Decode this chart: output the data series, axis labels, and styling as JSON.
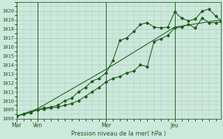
{
  "xlabel": "Pression niveau de la mer( hPa )",
  "bg_color": "#cde8dc",
  "grid_color": "#aaccbb",
  "line_color": "#1a5c1a",
  "ylim": [
    1008,
    1021
  ],
  "yticks": [
    1008,
    1009,
    1010,
    1011,
    1012,
    1013,
    1014,
    1015,
    1016,
    1017,
    1018,
    1019,
    1020
  ],
  "day_labels": [
    "Mar",
    "Ven",
    "Mer",
    "Jeu"
  ],
  "day_positions": [
    0,
    12,
    52,
    92
  ],
  "total_points": 120,
  "line1_x": [
    0,
    4,
    8,
    12,
    16,
    20,
    24,
    28,
    32,
    36,
    40,
    44,
    48,
    52,
    56,
    60,
    64,
    68,
    72,
    76,
    80,
    84,
    88,
    92,
    96,
    100,
    104,
    108,
    112,
    116,
    119
  ],
  "line1_y": [
    1008.3,
    1008.5,
    1008.7,
    1009.0,
    1009.1,
    1009.2,
    1009.3,
    1009.5,
    1009.7,
    1010.0,
    1010.5,
    1011.0,
    1011.5,
    1012.1,
    1012.5,
    1012.7,
    1013.1,
    1013.3,
    1014.0,
    1013.8,
    1016.6,
    1016.9,
    1017.3,
    1018.1,
    1018.2,
    1018.5,
    1018.1,
    1019.2,
    1018.7,
    1018.7,
    1018.8
  ],
  "line2_x": [
    0,
    4,
    8,
    12,
    16,
    20,
    24,
    28,
    32,
    36,
    40,
    44,
    48,
    52,
    56,
    60,
    64,
    68,
    72,
    76,
    80,
    84,
    88,
    92,
    96,
    100,
    104,
    108,
    112,
    116,
    119
  ],
  "line2_y": [
    1008.3,
    1008.5,
    1008.7,
    1009.0,
    1009.2,
    1009.3,
    1009.5,
    1010.0,
    1010.3,
    1011.0,
    1011.5,
    1012.2,
    1012.5,
    1013.1,
    1014.5,
    1016.7,
    1017.0,
    1017.7,
    1018.5,
    1018.7,
    1018.2,
    1018.1,
    1018.2,
    1019.9,
    1019.2,
    1018.9,
    1019.1,
    1020.0,
    1020.2,
    1019.4,
    1018.9
  ],
  "line3_x": [
    0,
    12,
    52,
    92,
    119
  ],
  "line3_y": [
    1008.3,
    1009.1,
    1013.5,
    1018.2,
    1019.0
  ]
}
